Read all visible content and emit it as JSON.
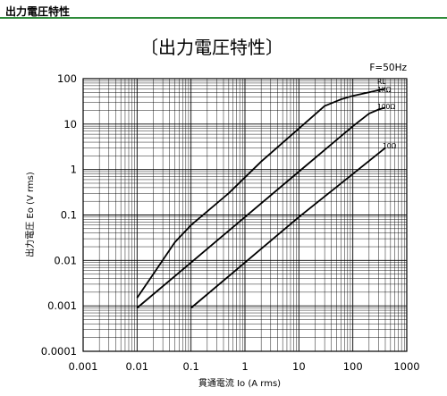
{
  "header": {
    "title": "出力電圧特性"
  },
  "chart_data": {
    "type": "line",
    "title": "〔出力電圧特性〕",
    "annotation": "F=50Hz",
    "xlabel": "貫通電流 Io (A rms)",
    "ylabel": "出力電圧 Eo (V rms)",
    "xscale": "log",
    "yscale": "log",
    "xlim": [
      0.001,
      1000
    ],
    "ylim": [
      0.0001,
      100
    ],
    "grid": true,
    "xticks": [
      "0.001",
      "0.01",
      "0.1",
      "1",
      "10",
      "100",
      "1000"
    ],
    "yticks": [
      "100",
      "10",
      "1",
      "0.1",
      "0.01",
      "0.001",
      "0.0001"
    ],
    "series": [
      {
        "name": "RL",
        "x": [],
        "y": []
      },
      {
        "name": "1KΩ",
        "x": [
          0.01,
          0.02,
          0.05,
          0.1,
          0.5,
          2,
          10,
          30,
          60,
          100,
          200,
          400
        ],
        "y": [
          0.0015,
          0.005,
          0.025,
          0.06,
          0.3,
          1.5,
          8,
          25,
          35,
          42,
          50,
          60
        ]
      },
      {
        "name": "100Ω",
        "x": [
          0.01,
          0.1,
          1,
          10,
          100,
          200,
          300,
          400
        ],
        "y": [
          0.0009,
          0.009,
          0.09,
          0.9,
          9,
          17,
          21,
          23
        ]
      },
      {
        "name": "10Ω",
        "x": [
          0.1,
          1,
          10,
          100,
          400
        ],
        "y": [
          0.0009,
          0.009,
          0.09,
          0.8,
          3.0
        ]
      }
    ]
  }
}
